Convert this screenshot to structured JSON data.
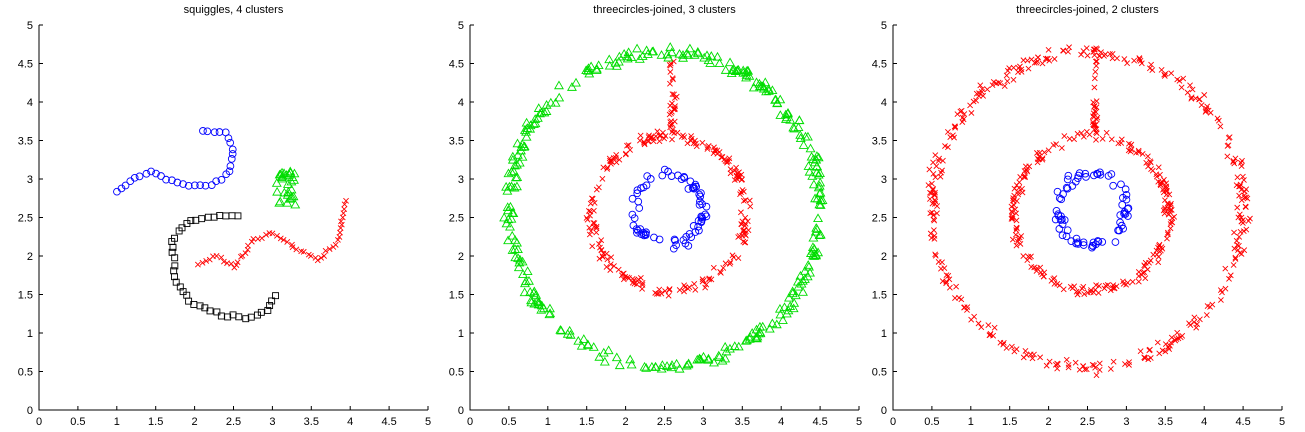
{
  "colors": {
    "blue": "#0000ff",
    "green": "#00dd00",
    "red": "#ff0000",
    "black": "#000000"
  },
  "chart_data": [
    {
      "type": "scatter",
      "title": "squiggles, 4 clusters",
      "xlim": [
        0,
        5
      ],
      "ylim": [
        0,
        5
      ],
      "xticks": [
        "0",
        "0.5",
        "1",
        "1.5",
        "2",
        "2.5",
        "3",
        "3.5",
        "4",
        "4.5",
        "5"
      ],
      "yticks": [
        "0",
        "0.5",
        "1",
        "1.5",
        "2",
        "2.5",
        "3",
        "3.5",
        "4",
        "4.5",
        "5"
      ],
      "series": [
        {
          "marker": "circle",
          "color": "blue",
          "curve": [
            [
              1.0,
              2.82
            ],
            [
              1.2,
              3.0
            ],
            [
              1.45,
              3.1
            ],
            [
              1.7,
              2.98
            ],
            [
              1.95,
              2.9
            ],
            [
              2.25,
              2.92
            ],
            [
              2.45,
              3.1
            ],
            [
              2.5,
              3.4
            ],
            [
              2.4,
              3.6
            ],
            [
              2.1,
              3.63
            ]
          ],
          "count": 34
        },
        {
          "marker": "triangle",
          "color": "green",
          "curve": [
            [
              3.05,
              2.65
            ],
            [
              3.3,
              3.1
            ]
          ],
          "count": 30,
          "cluster": true
        },
        {
          "marker": "x",
          "color": "red",
          "curve": [
            [
              2.05,
              1.9
            ],
            [
              2.3,
              2.0
            ],
            [
              2.5,
              1.85
            ],
            [
              2.75,
              2.2
            ],
            [
              3.0,
              2.3
            ],
            [
              3.3,
              2.1
            ],
            [
              3.6,
              1.95
            ],
            [
              3.85,
              2.2
            ],
            [
              3.95,
              2.7
            ]
          ],
          "count": 55
        },
        {
          "marker": "square",
          "color": "black",
          "curve": [
            [
              2.55,
              2.52
            ],
            [
              2.2,
              2.5
            ],
            [
              1.9,
              2.45
            ],
            [
              1.7,
              2.2
            ],
            [
              1.75,
              1.7
            ],
            [
              1.95,
              1.4
            ],
            [
              2.3,
              1.25
            ],
            [
              2.7,
              1.2
            ],
            [
              2.95,
              1.3
            ],
            [
              3.02,
              1.5
            ]
          ],
          "count": 42
        }
      ]
    },
    {
      "type": "scatter",
      "title": "threecircles-joined, 3 clusters",
      "xlim": [
        0,
        5
      ],
      "ylim": [
        0,
        5
      ],
      "xticks": [
        "0",
        "0.5",
        "1",
        "1.5",
        "2",
        "2.5",
        "3",
        "3.5",
        "4",
        "4.5",
        "5"
      ],
      "yticks": [
        "0",
        "0.5",
        "1",
        "1.5",
        "2",
        "2.5",
        "3",
        "3.5",
        "4",
        "4.5",
        "5"
      ],
      "series": [
        {
          "marker": "circle",
          "color": "blue",
          "ring": {
            "cx": 2.55,
            "cy": 2.6,
            "rx": 0.45,
            "ry": 0.45
          },
          "jitter": 0.07,
          "count": 70
        },
        {
          "marker": "x",
          "color": "red",
          "ring": {
            "cx": 2.55,
            "cy": 2.55,
            "rx": 1.0,
            "ry": 1.0
          },
          "jitter": 0.07,
          "count": 240,
          "bridge": {
            "x": 2.6,
            "from": 3.55,
            "to": 4.55
          }
        },
        {
          "marker": "triangle",
          "color": "green",
          "ring": {
            "cx": 2.5,
            "cy": 2.6,
            "rx": 2.0,
            "ry": 2.05
          },
          "jitter": 0.08,
          "count": 330
        }
      ]
    },
    {
      "type": "scatter",
      "title": "threecircles-joined, 2 clusters",
      "xlim": [
        0,
        5
      ],
      "ylim": [
        0,
        5
      ],
      "xticks": [
        "0",
        "0.5",
        "1",
        "1.5",
        "2",
        "2.5",
        "3",
        "3.5",
        "4",
        "4.5",
        "5"
      ],
      "yticks": [
        "0",
        "0.5",
        "1",
        "1.5",
        "2",
        "2.5",
        "3",
        "3.5",
        "4",
        "4.5",
        "5"
      ],
      "series": [
        {
          "marker": "circle",
          "color": "blue",
          "ring": {
            "cx": 2.55,
            "cy": 2.6,
            "rx": 0.45,
            "ry": 0.45
          },
          "jitter": 0.07,
          "count": 70
        },
        {
          "marker": "x",
          "color": "red",
          "ring": {
            "cx": 2.55,
            "cy": 2.55,
            "rx": 1.0,
            "ry": 1.0
          },
          "jitter": 0.07,
          "count": 240,
          "bridge": {
            "x": 2.6,
            "from": 3.55,
            "to": 4.55
          }
        },
        {
          "marker": "x",
          "color": "red",
          "ring": {
            "cx": 2.5,
            "cy": 2.6,
            "rx": 2.0,
            "ry": 2.05
          },
          "jitter": 0.08,
          "count": 330
        }
      ]
    }
  ]
}
